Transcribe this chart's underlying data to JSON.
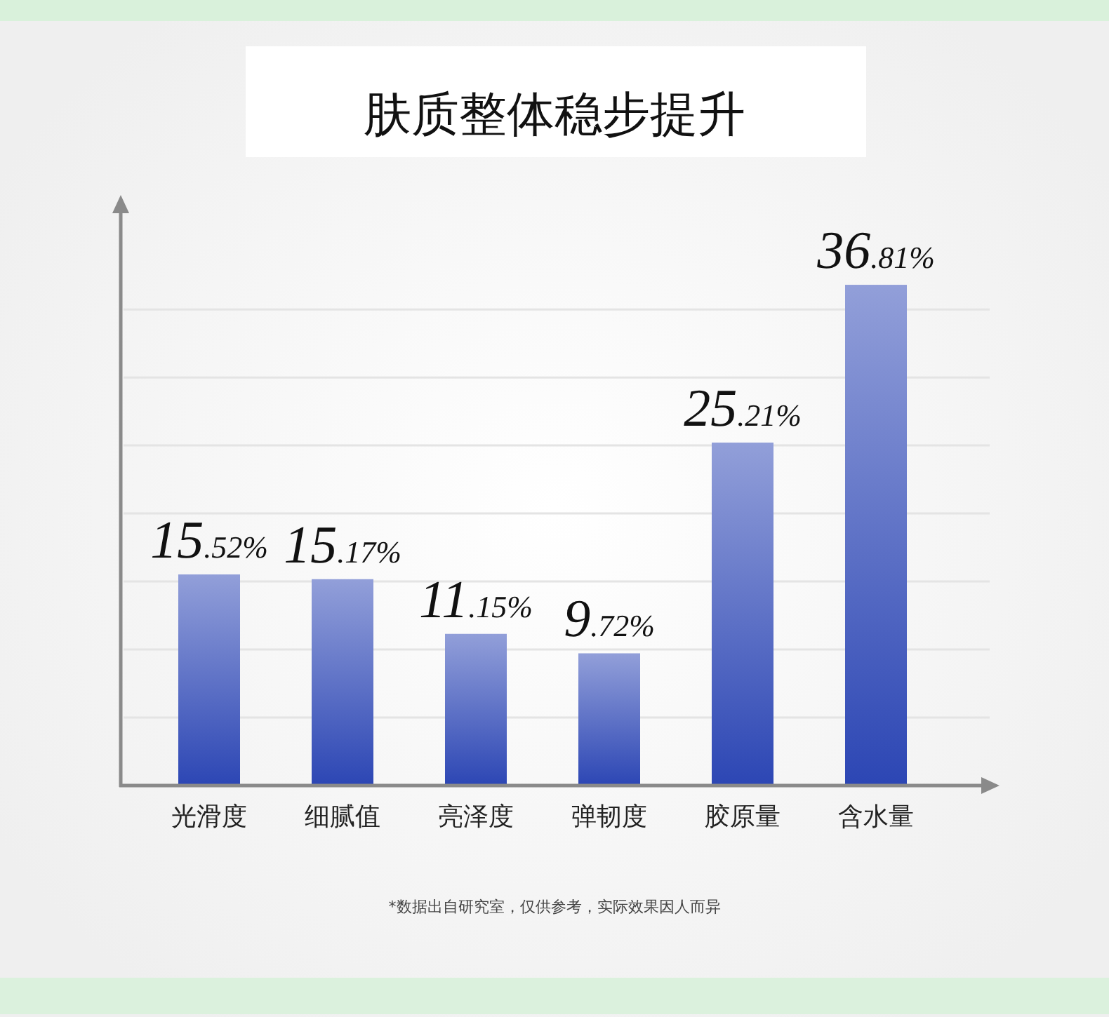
{
  "chart_data": {
    "type": "bar",
    "title": "肤质整体稳步提升",
    "categories": [
      "光滑度",
      "细腻值",
      "亮泽度",
      "弹韧度",
      "胶原量",
      "含水量"
    ],
    "values": [
      15.52,
      15.17,
      11.15,
      9.72,
      25.21,
      36.81
    ],
    "value_labels": [
      "15.52%",
      "15.17%",
      "11.15%",
      "9.72%",
      "25.21%",
      "36.81%"
    ],
    "color": "#4a5fc0",
    "ylim": [
      0,
      43
    ],
    "yticks": [
      {
        "value": 5,
        "label": null
      },
      {
        "value": 10,
        "label": null
      },
      {
        "value": 15,
        "label": null
      },
      {
        "value": 20,
        "label": null
      },
      {
        "value": 25,
        "label": null
      },
      {
        "value": 30,
        "label": null
      },
      {
        "value": 35,
        "label": null
      }
    ],
    "grid": "y",
    "tick_labels": "x",
    "annotations": [
      "*数据出自研究室，仅供参考，实际效果因人而异"
    ]
  }
}
